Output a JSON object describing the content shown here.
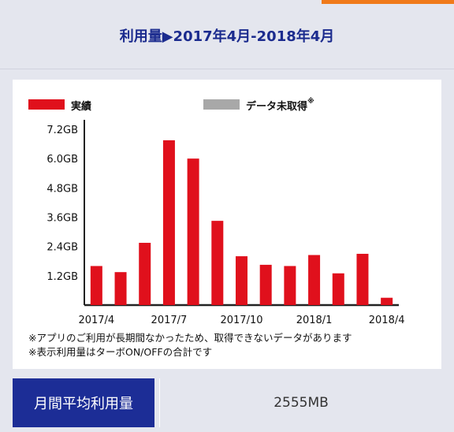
{
  "header": {
    "title": "利用量▶2017年4月-2018年4月"
  },
  "legend": {
    "actual": {
      "label": "実績",
      "color": "#e0101c"
    },
    "missing": {
      "label": "データ未取得",
      "mark": "※",
      "color": "#a8a8a8"
    }
  },
  "notes": [
    "※アプリのご利用が長期間なかったため、取得できないデータがあります",
    "※表示利用量はターボON/OFFの合計です"
  ],
  "summary": {
    "label": "月間平均利用量",
    "value": "2555MB"
  },
  "chart_data": {
    "type": "bar",
    "x": [
      "2017/4",
      "2017/5",
      "2017/6",
      "2017/7",
      "2017/8",
      "2017/9",
      "2017/10",
      "2017/11",
      "2017/12",
      "2018/1",
      "2018/2",
      "2018/3",
      "2018/4"
    ],
    "series": [
      {
        "name": "実績",
        "color": "#e0101c",
        "values": [
          1.6,
          1.35,
          2.55,
          6.75,
          6.0,
          3.45,
          2.0,
          1.65,
          1.6,
          2.05,
          1.3,
          2.1,
          0.3
        ]
      }
    ],
    "x_tick_labels": [
      "2017/4",
      "2017/7",
      "2017/10",
      "2018/1",
      "2018/4"
    ],
    "y_tick_labels": [
      "1.2GB",
      "2.4GB",
      "3.6GB",
      "4.8GB",
      "6.0GB",
      "7.2GB"
    ],
    "y_ticks": [
      1.2,
      2.4,
      3.6,
      4.8,
      6.0,
      7.2
    ],
    "ylim": [
      0,
      7.2
    ],
    "grid": false
  }
}
